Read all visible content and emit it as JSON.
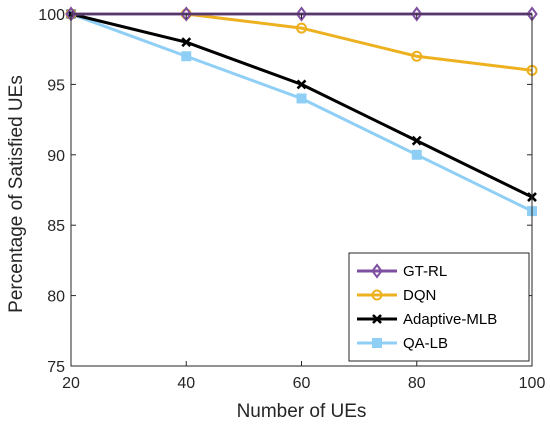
{
  "chart_data": {
    "type": "line",
    "title": "",
    "xlabel": "Number of  UEs",
    "ylabel": "Percentage of Satisfied UEs",
    "x": [
      20,
      40,
      60,
      80,
      100
    ],
    "xlim": [
      20,
      100
    ],
    "ylim": [
      75,
      100
    ],
    "xticks": [
      "20",
      "40",
      "60",
      "80",
      "100"
    ],
    "yticks": [
      "75",
      "80",
      "85",
      "90",
      "95",
      "100"
    ],
    "grid": false,
    "legend_position": "bottom-right",
    "series": [
      {
        "name": "GT-RL",
        "values": [
          100,
          100,
          100,
          100,
          100
        ],
        "color": "#7E4FA0",
        "marker": "diamond"
      },
      {
        "name": "DQN",
        "values": [
          100,
          100,
          99,
          97,
          96
        ],
        "color": "#EDB120",
        "marker": "circle"
      },
      {
        "name": "Adaptive-MLB",
        "values": [
          100,
          98,
          95,
          91,
          87
        ],
        "color": "#000000",
        "marker": "x"
      },
      {
        "name": "QA-LB",
        "values": [
          100,
          97,
          94,
          90,
          86
        ],
        "color": "#8FCFF5",
        "marker": "square"
      }
    ]
  }
}
